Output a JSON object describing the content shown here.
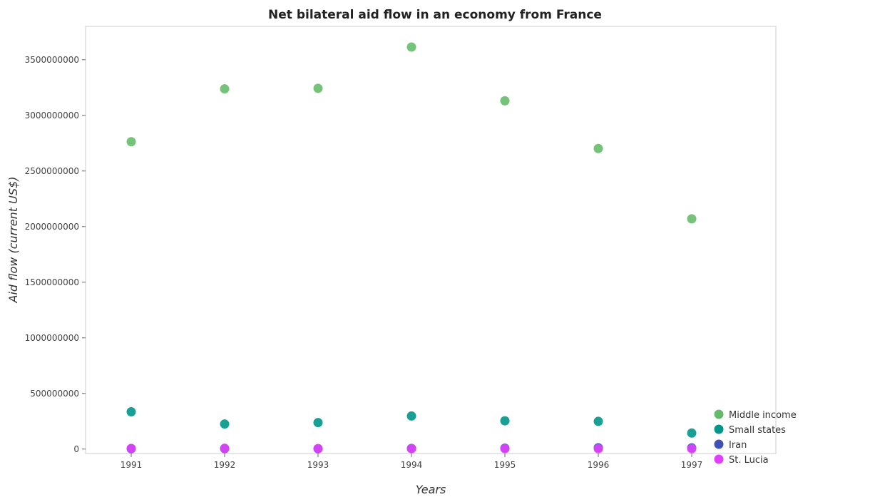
{
  "chart_data": {
    "type": "scatter",
    "title": "Net bilateral aid flow in an economy from France",
    "xlabel": "Years",
    "ylabel": "Aid flow (current US$)",
    "categories": [
      "1991",
      "1992",
      "1993",
      "1994",
      "1995",
      "1996",
      "1997"
    ],
    "ylim": [
      -40000000,
      3800000000
    ],
    "yticks": [
      {
        "value": 0,
        "label": "0"
      },
      {
        "value": 500000000,
        "label": "500000000"
      },
      {
        "value": 1000000000,
        "label": "1000000000"
      },
      {
        "value": 1500000000,
        "label": "1500000000"
      },
      {
        "value": 2000000000,
        "label": "2000000000"
      },
      {
        "value": 2500000000,
        "label": "2500000000"
      },
      {
        "value": 3000000000,
        "label": "3000000000"
      },
      {
        "value": 3500000000,
        "label": "3500000000"
      }
    ],
    "grid": false,
    "legend_position": "bottom-right",
    "series": [
      {
        "name": "Middle income",
        "color": "#66bb6a",
        "values": [
          2763000000,
          3238000000,
          3243000000,
          3614000000,
          3131000000,
          2702000000,
          2070000000
        ]
      },
      {
        "name": "Small states",
        "color": "#009688",
        "values": [
          335000000,
          225000000,
          238000000,
          297000000,
          254000000,
          249000000,
          144000000
        ]
      },
      {
        "name": "Iran",
        "color": "#3f51b5",
        "values": [
          3000000,
          4000000,
          3000000,
          6000000,
          8000000,
          12000000,
          11000000
        ]
      },
      {
        "name": "St. Lucia",
        "color": "#e040fb",
        "values": [
          6000000,
          7000000,
          4000000,
          4000000,
          4000000,
          3000000,
          3000000
        ]
      }
    ]
  }
}
